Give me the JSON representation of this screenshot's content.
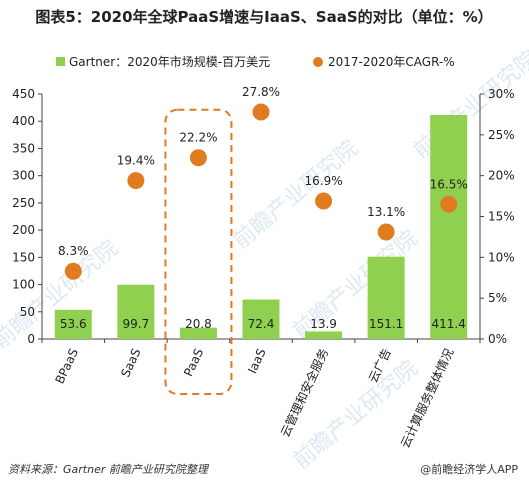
{
  "chart_data": {
    "type": "bar",
    "title": "图表5：2020年全球PaaS增速与IaaS、SaaS的对比（单位：%）",
    "categories": [
      "BPaaS",
      "SaaS",
      "PaaS",
      "IaaS",
      "云管理和安全服务",
      "云广告",
      "云计算服务整体情况"
    ],
    "series": [
      {
        "name": "Gartner：2020年市场规模-百万美元",
        "type": "bar",
        "axis": "left",
        "color": "#8fd14f",
        "values": [
          53.6,
          99.7,
          20.8,
          72.4,
          13.9,
          151.1,
          411.4
        ],
        "labels": [
          "53.6",
          "99.7",
          "20.8",
          "72.4",
          "13.9",
          "151.1",
          "411.4"
        ]
      },
      {
        "name": "2017-2020年CAGR-%",
        "type": "scatter",
        "axis": "right",
        "color": "#e07c1f",
        "values": [
          8.3,
          19.4,
          22.2,
          27.8,
          16.9,
          13.1,
          16.5
        ],
        "labels": [
          "8.3%",
          "19.4%",
          "22.2%",
          "27.8%",
          "16.9%",
          "13.1%",
          "16.5%"
        ]
      }
    ],
    "y_left": {
      "min": 0,
      "max": 450,
      "ticks": [
        "0",
        "50",
        "100",
        "150",
        "200",
        "250",
        "300",
        "350",
        "400",
        "450"
      ]
    },
    "y_right": {
      "min": 0,
      "max": 30,
      "ticks": [
        "0%",
        "5%",
        "10%",
        "15%",
        "20%",
        "25%",
        "30%"
      ]
    },
    "highlight_category": "PaaS",
    "grid": false,
    "legend": "top"
  },
  "footer": {
    "source": "资料来源：Gartner 前瞻产业研究院整理",
    "brand": "@前瞻经济学人APP"
  },
  "watermark": "前瞻产业研究院"
}
